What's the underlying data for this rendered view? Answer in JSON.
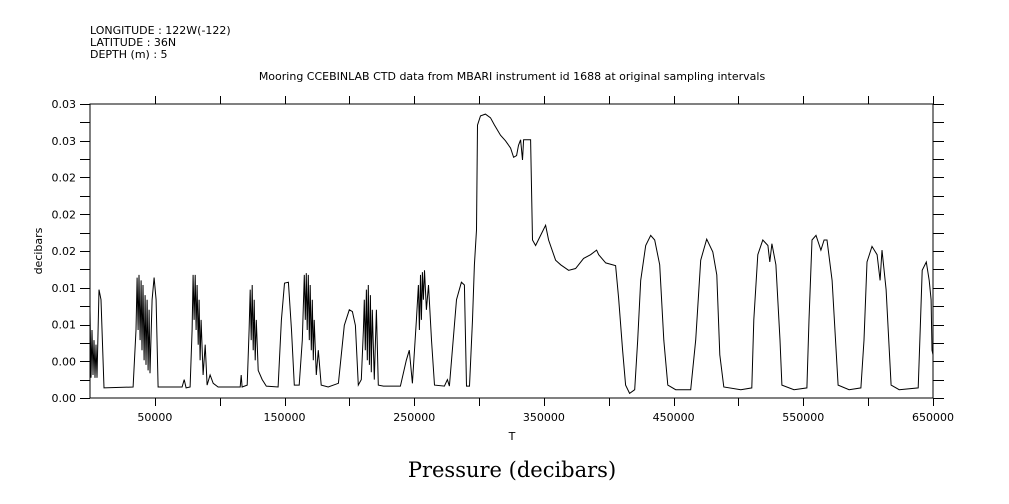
{
  "header": {
    "longitude": "LONGITUDE : 122W(-122)",
    "latitude": "LATITUDE : 36N",
    "depth": "DEPTH (m) : 5"
  },
  "chart_data": {
    "type": "line",
    "title": "Mooring CCEBINLAB CTD data from MBARI instrument id 1688 at original sampling intervals",
    "xlabel": "T",
    "ylabel": "decibars",
    "caption": "Pressure (decibars)",
    "xlim": [
      0,
      650000
    ],
    "ylim": [
      0,
      0.032
    ],
    "x_ticks": [
      50000,
      150000,
      250000,
      350000,
      450000,
      550000,
      650000
    ],
    "x_tick_labels": [
      "50000",
      "150000",
      "250000",
      "350000",
      "450000",
      "550000",
      "650000"
    ],
    "x_major_step": 50000,
    "y_ticks": [
      0,
      0.004,
      0.008,
      0.012,
      0.016,
      0.02,
      0.024,
      0.028,
      0.032
    ],
    "y_tick_labels": [
      "0.00",
      "0.00",
      "0.01",
      "0.01",
      "0.02",
      "0.02",
      "0.02",
      "0.03",
      "0.03"
    ],
    "y_minor_step": 0.002,
    "grid": false,
    "color": "#000000",
    "series": [
      {
        "name": "Pressure",
        "points": [
          [
            0,
            0.0096
          ],
          [
            772,
            0.0022
          ],
          [
            1544,
            0.0074
          ],
          [
            2316,
            0.0025
          ],
          [
            3088,
            0.0063
          ],
          [
            3860,
            0.0022
          ],
          [
            4632,
            0.0058
          ],
          [
            5404,
            0.0022
          ],
          [
            6950,
            0.0118
          ],
          [
            8490,
            0.0107
          ],
          [
            10800,
            0.0011
          ],
          [
            33200,
            0.0012
          ],
          [
            35500,
            0.0074
          ],
          [
            36300,
            0.0131
          ],
          [
            37050,
            0.0074
          ],
          [
            37800,
            0.0134
          ],
          [
            38600,
            0.0063
          ],
          [
            39400,
            0.0128
          ],
          [
            40100,
            0.0052
          ],
          [
            40900,
            0.0123
          ],
          [
            41700,
            0.0041
          ],
          [
            42500,
            0.0112
          ],
          [
            43200,
            0.0036
          ],
          [
            44000,
            0.0107
          ],
          [
            44800,
            0.003
          ],
          [
            45600,
            0.0096
          ],
          [
            46300,
            0.0027
          ],
          [
            47900,
            0.0107
          ],
          [
            49400,
            0.0131
          ],
          [
            51000,
            0.0107
          ],
          [
            52500,
            0.0012
          ],
          [
            71000,
            0.0012
          ],
          [
            72600,
            0.002
          ],
          [
            74100,
            0.0011
          ],
          [
            77200,
            0.0012
          ],
          [
            78700,
            0.0074
          ],
          [
            79500,
            0.0134
          ],
          [
            80300,
            0.0085
          ],
          [
            81100,
            0.0134
          ],
          [
            81800,
            0.0074
          ],
          [
            82600,
            0.0123
          ],
          [
            83400,
            0.0058
          ],
          [
            84100,
            0.0107
          ],
          [
            84900,
            0.0041
          ],
          [
            85700,
            0.0085
          ],
          [
            87200,
            0.0025
          ],
          [
            88800,
            0.0058
          ],
          [
            90300,
            0.0014
          ],
          [
            92600,
            0.0025
          ],
          [
            95000,
            0.0016
          ],
          [
            98800,
            0.0012
          ],
          [
            115800,
            0.0012
          ],
          [
            116600,
            0.0025
          ],
          [
            117300,
            0.0012
          ],
          [
            121200,
            0.0014
          ],
          [
            122700,
            0.0074
          ],
          [
            123500,
            0.0118
          ],
          [
            124300,
            0.0063
          ],
          [
            125100,
            0.0123
          ],
          [
            125800,
            0.0052
          ],
          [
            126600,
            0.0107
          ],
          [
            127400,
            0.0041
          ],
          [
            128200,
            0.0085
          ],
          [
            129700,
            0.003
          ],
          [
            132800,
            0.002
          ],
          [
            135900,
            0.0013
          ],
          [
            145000,
            0.0012
          ],
          [
            147600,
            0.0085
          ],
          [
            150000,
            0.0125
          ],
          [
            153000,
            0.0126
          ],
          [
            155400,
            0.0074
          ],
          [
            157500,
            0.0014
          ],
          [
            161300,
            0.0014
          ],
          [
            163700,
            0.0063
          ],
          [
            165200,
            0.0134
          ],
          [
            166000,
            0.0085
          ],
          [
            166800,
            0.0136
          ],
          [
            167500,
            0.0074
          ],
          [
            168300,
            0.0134
          ],
          [
            169100,
            0.0063
          ],
          [
            169800,
            0.0123
          ],
          [
            170600,
            0.0052
          ],
          [
            171400,
            0.0107
          ],
          [
            172200,
            0.0041
          ],
          [
            172900,
            0.0085
          ],
          [
            174500,
            0.0025
          ],
          [
            176000,
            0.0052
          ],
          [
            178300,
            0.0014
          ],
          [
            183700,
            0.0012
          ],
          [
            191500,
            0.0016
          ],
          [
            196100,
            0.0079
          ],
          [
            199900,
            0.0096
          ],
          [
            202300,
            0.0094
          ],
          [
            204600,
            0.0079
          ],
          [
            206900,
            0.0014
          ],
          [
            209200,
            0.002
          ],
          [
            210800,
            0.0074
          ],
          [
            211500,
            0.0107
          ],
          [
            212300,
            0.0052
          ],
          [
            213100,
            0.0118
          ],
          [
            213800,
            0.0041
          ],
          [
            214600,
            0.0123
          ],
          [
            215400,
            0.0036
          ],
          [
            216200,
            0.0112
          ],
          [
            216900,
            0.0028
          ],
          [
            217700,
            0.0096
          ],
          [
            219200,
            0.002
          ],
          [
            220800,
            0.0096
          ],
          [
            222300,
            0.0014
          ],
          [
            226200,
            0.0013
          ],
          [
            239300,
            0.0013
          ],
          [
            243900,
            0.0041
          ],
          [
            246200,
            0.0052
          ],
          [
            248600,
            0.0016
          ],
          [
            251700,
            0.0085
          ],
          [
            253200,
            0.0123
          ],
          [
            254000,
            0.0074
          ],
          [
            254800,
            0.0134
          ],
          [
            255500,
            0.0085
          ],
          [
            256300,
            0.0137
          ],
          [
            257100,
            0.0107
          ],
          [
            257900,
            0.0139
          ],
          [
            259400,
            0.0096
          ],
          [
            261000,
            0.0123
          ],
          [
            263300,
            0.0063
          ],
          [
            265600,
            0.0014
          ],
          [
            273300,
            0.0013
          ],
          [
            275600,
            0.002
          ],
          [
            277100,
            0.0013
          ],
          [
            282600,
            0.0107
          ],
          [
            286400,
            0.0126
          ],
          [
            288700,
            0.0123
          ],
          [
            290300,
            0.0013
          ],
          [
            292600,
            0.0013
          ],
          [
            294900,
            0.0085
          ],
          [
            296400,
            0.0145
          ],
          [
            298000,
            0.0183
          ],
          [
            298800,
            0.0297
          ],
          [
            301100,
            0.0307
          ],
          [
            304900,
            0.0309
          ],
          [
            308800,
            0.0305
          ],
          [
            311900,
            0.0297
          ],
          [
            316500,
            0.0286
          ],
          [
            320400,
            0.028
          ],
          [
            324300,
            0.0272
          ],
          [
            326600,
            0.0262
          ],
          [
            328900,
            0.0264
          ],
          [
            330400,
            0.0275
          ],
          [
            332000,
            0.0281
          ],
          [
            333500,
            0.0259
          ],
          [
            334300,
            0.0281
          ],
          [
            339700,
            0.0281
          ],
          [
            341200,
            0.0172
          ],
          [
            343600,
            0.0166
          ],
          [
            347400,
            0.0177
          ],
          [
            351300,
            0.0188
          ],
          [
            353600,
            0.0172
          ],
          [
            359000,
            0.015
          ],
          [
            362900,
            0.0145
          ],
          [
            369000,
            0.0139
          ],
          [
            374400,
            0.0141
          ],
          [
            380600,
            0.0152
          ],
          [
            386000,
            0.0156
          ],
          [
            390600,
            0.0161
          ],
          [
            392200,
            0.0156
          ],
          [
            397600,
            0.0147
          ],
          [
            405300,
            0.0144
          ],
          [
            407600,
            0.0109
          ],
          [
            410700,
            0.0052
          ],
          [
            413000,
            0.0014
          ],
          [
            416100,
            0.0005
          ],
          [
            420000,
            0.0009
          ],
          [
            422300,
            0.0063
          ],
          [
            424600,
            0.0128
          ],
          [
            428500,
            0.0166
          ],
          [
            432300,
            0.0177
          ],
          [
            435400,
            0.0172
          ],
          [
            439300,
            0.0145
          ],
          [
            442400,
            0.0063
          ],
          [
            445500,
            0.0014
          ],
          [
            451600,
            0.0009
          ],
          [
            463200,
            0.0009
          ],
          [
            467000,
            0.0063
          ],
          [
            470900,
            0.015
          ],
          [
            475500,
            0.0173
          ],
          [
            480200,
            0.0159
          ],
          [
            483300,
            0.0134
          ],
          [
            485600,
            0.0047
          ],
          [
            488700,
            0.0012
          ],
          [
            501800,
            0.0009
          ],
          [
            510300,
            0.0011
          ],
          [
            511800,
            0.0085
          ],
          [
            514900,
            0.0156
          ],
          [
            518800,
            0.0172
          ],
          [
            522700,
            0.0166
          ],
          [
            524200,
            0.0148
          ],
          [
            525800,
            0.0168
          ],
          [
            528900,
            0.0145
          ],
          [
            532000,
            0.0063
          ],
          [
            533500,
            0.0014
          ],
          [
            542800,
            0.0009
          ],
          [
            552800,
            0.0011
          ],
          [
            554400,
            0.0085
          ],
          [
            556700,
            0.0172
          ],
          [
            559800,
            0.0177
          ],
          [
            563600,
            0.0161
          ],
          [
            566000,
            0.0172
          ],
          [
            568300,
            0.0172
          ],
          [
            572200,
            0.0128
          ],
          [
            576800,
            0.0014
          ],
          [
            585300,
            0.0009
          ],
          [
            594400,
            0.0011
          ],
          [
            596800,
            0.0063
          ],
          [
            599100,
            0.0148
          ],
          [
            603000,
            0.0165
          ],
          [
            606900,
            0.0156
          ],
          [
            609200,
            0.0128
          ],
          [
            610700,
            0.0161
          ],
          [
            613800,
            0.0118
          ],
          [
            617700,
            0.0014
          ],
          [
            623900,
            0.0009
          ],
          [
            638600,
            0.0011
          ],
          [
            640100,
            0.0074
          ],
          [
            641700,
            0.0139
          ],
          [
            644800,
            0.0148
          ],
          [
            647100,
            0.0128
          ],
          [
            648500,
            0.0107
          ],
          [
            649200,
            0.0052
          ],
          [
            650000,
            0.0047
          ]
        ]
      }
    ]
  }
}
